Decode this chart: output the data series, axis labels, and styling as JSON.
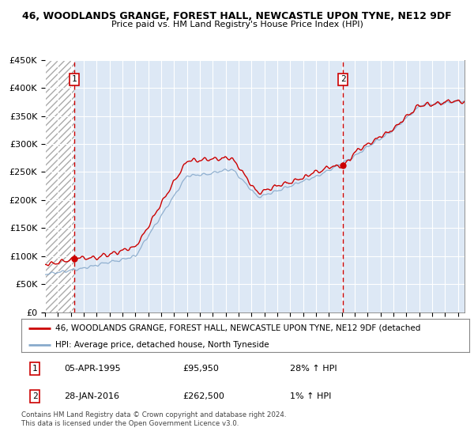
{
  "title": "46, WOODLANDS GRANGE, FOREST HALL, NEWCASTLE UPON TYNE, NE12 9DF",
  "subtitle": "Price paid vs. HM Land Registry's House Price Index (HPI)",
  "ylim": [
    0,
    450000
  ],
  "yticks": [
    0,
    50000,
    100000,
    150000,
    200000,
    250000,
    300000,
    350000,
    400000,
    450000
  ],
  "ytick_labels": [
    "£0",
    "£50K",
    "£100K",
    "£150K",
    "£200K",
    "£250K",
    "£300K",
    "£350K",
    "£400K",
    "£450K"
  ],
  "xmin": 1993,
  "xmax": 2025.5,
  "sale1_date": 1995.25,
  "sale1_price": 95950,
  "sale2_date": 2016.08,
  "sale2_price": 262500,
  "sale1_label": "1",
  "sale2_label": "2",
  "property_line_color": "#cc0000",
  "hpi_line_color": "#88aacc",
  "vline_color": "#cc0000",
  "legend_property": "46, WOODLANDS GRANGE, FOREST HALL, NEWCASTLE UPON TYNE, NE12 9DF (detached",
  "legend_hpi": "HPI: Average price, detached house, North Tyneside",
  "table_row1": [
    "1",
    "05-APR-1995",
    "£95,950",
    "28% ↑ HPI"
  ],
  "table_row2": [
    "2",
    "28-JAN-2016",
    "£262,500",
    "1% ↑ HPI"
  ],
  "footnote": "Contains HM Land Registry data © Crown copyright and database right 2024.\nThis data is licensed under the Open Government Licence v3.0.",
  "plot_bg_color": "#dde8f5",
  "grid_color": "#ffffff",
  "hatch_color": "#c8c8c8"
}
